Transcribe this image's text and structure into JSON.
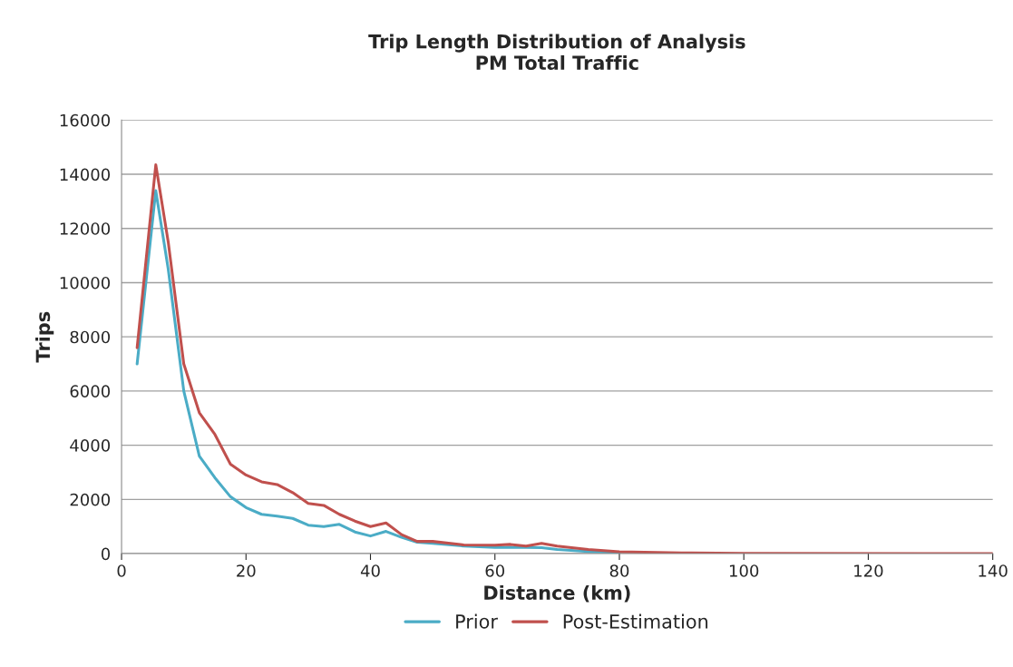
{
  "chart_data": {
    "type": "line",
    "title": "Trip Length Distribution of Analysis\nPM Total Traffic",
    "xlabel": "Distance (km)",
    "ylabel": "Trips",
    "xlim": [
      0,
      140
    ],
    "xticks": [
      0,
      20,
      40,
      60,
      80,
      100,
      120,
      140
    ],
    "ylim": [
      0,
      16000
    ],
    "yticks": [
      0,
      2000,
      4000,
      6000,
      8000,
      10000,
      12000,
      14000,
      16000
    ],
    "grid": "y",
    "legend": "bottom",
    "marker": "none",
    "line_style": "solid",
    "series": [
      {
        "name": "Prior",
        "color": "#4bacc6",
        "x": [
          2.5,
          5.5,
          7.5,
          10,
          12.5,
          15,
          17.5,
          20,
          22.5,
          25,
          27.5,
          30,
          32.5,
          35,
          37.5,
          40,
          42.5,
          45,
          47.5,
          50,
          55,
          60,
          65,
          67.5,
          70,
          75,
          80
        ],
        "values": [
          7000,
          13400,
          10500,
          6000,
          3600,
          2800,
          2100,
          1700,
          1450,
          1380,
          1300,
          1050,
          1000,
          1080,
          800,
          650,
          820,
          600,
          420,
          380,
          280,
          230,
          230,
          220,
          150,
          80,
          40
        ]
      },
      {
        "name": "Post-Estimation",
        "color": "#c0504d",
        "x": [
          2.5,
          5.5,
          7.5,
          10,
          12.5,
          15,
          17.5,
          20,
          22.5,
          25,
          27.5,
          30,
          32.5,
          35,
          37.5,
          40,
          42.5,
          45,
          47.5,
          50,
          55,
          60,
          62.5,
          65,
          67.5,
          70,
          75,
          80,
          90,
          100,
          140
        ],
        "values": [
          7600,
          14350,
          11500,
          7000,
          5200,
          4400,
          3300,
          2900,
          2650,
          2550,
          2250,
          1850,
          1780,
          1450,
          1200,
          1000,
          1130,
          700,
          450,
          450,
          320,
          310,
          340,
          280,
          380,
          280,
          150,
          70,
          30,
          10,
          0
        ]
      }
    ]
  }
}
